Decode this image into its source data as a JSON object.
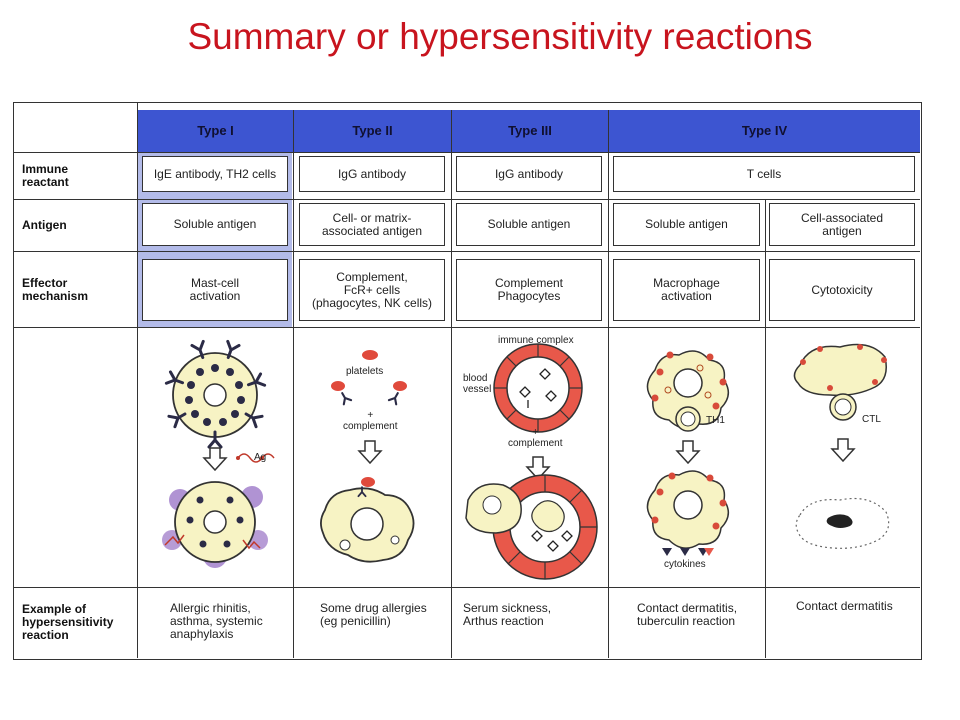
{
  "title": "Summary or hypersensitivity reactions",
  "columns": [
    "Type I",
    "Type II",
    "Type III",
    "Type IV"
  ],
  "row_labels": {
    "immune_reactant": "Immune\nreactant",
    "antigen": "Antigen",
    "effector": "Effector\nmechanism",
    "example": "Example of\nhypersensitivity\nreaction"
  },
  "immune_reactant": {
    "type1": "IgE antibody, TH2 cells",
    "type2": "IgG antibody",
    "type3": "IgG antibody",
    "type4": "T cells"
  },
  "antigen": {
    "type1": "Soluble antigen",
    "type2": "Cell- or matrix-\nassociated antigen",
    "type3": "Soluble antigen",
    "type4a": "Soluble antigen",
    "type4b": "Cell-associated\nantigen"
  },
  "effector": {
    "type1": "Mast-cell\nactivation",
    "type2": "Complement,\nFcR+ cells\n(phagocytes, NK cells)",
    "type3": "Complement\nPhagocytes",
    "type4a": "Macrophage\nactivation",
    "type4b": "Cytotoxicity"
  },
  "diagram_labels": {
    "ag": "Ag",
    "platelets": "platelets",
    "complement2": "+\ncomplement",
    "immune_complex": "immune complex",
    "blood_vessel": "blood\nvessel",
    "complement3": "+\ncomplement",
    "th1": "TH1",
    "ctl": "CTL",
    "cytokines": "cytokines"
  },
  "examples": {
    "type1": "Allergic rhinitis,\nasthma, systemic\nanaphylaxis",
    "type2": "Some drug allergies\n(eg penicillin)",
    "type3": "Serum sickness,\nArthus reaction",
    "type4a": "Contact dermatitis,\ntuberculin reaction",
    "type4b": "Contact dermatitis"
  },
  "colors": {
    "title": "#c8141e",
    "header_bg": "#3d55d1",
    "type1_band": "#b3bbe9",
    "cell_fill": "#f7f3c4",
    "vessel_red": "#e8584a",
    "granule": "#2b2b46",
    "purple_release": "#7b4bb5"
  }
}
